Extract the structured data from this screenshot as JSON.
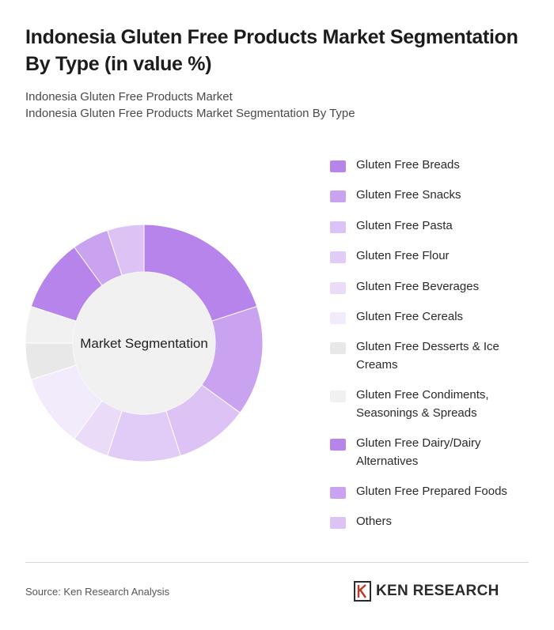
{
  "header": {
    "title": "Indonesia Gluten Free Products Market Segmentation By Type (in value %)",
    "subtitle_1": "Indonesia Gluten Free Products Market",
    "subtitle_2": "Indonesia Gluten Free Products Market Segmentation By Type"
  },
  "chart_data": {
    "type": "pie",
    "center_label": "Market Segmentation",
    "categories": [
      "Gluten Free Breads",
      "Gluten Free Snacks",
      "Gluten Free Pasta",
      "Gluten Free Flour",
      "Gluten Free Beverages",
      "Gluten Free Cereals",
      "Gluten Free Desserts & Ice Creams",
      "Gluten Free Condiments, Seasonings & Spreads",
      "Gluten Free Dairy/Dairy Alternatives",
      "Gluten Free Prepared Foods",
      "Others"
    ],
    "values": [
      20,
      15,
      10,
      10,
      5,
      10,
      5,
      5,
      10,
      5,
      5
    ],
    "colors": [
      "#b684ea",
      "#c9a2f0",
      "#dcc2f5",
      "#e0ccf6",
      "#eadcf9",
      "#f2ebfc",
      "#e8e8e8",
      "#f1f1f1",
      "#b684ea",
      "#c9a2f0",
      "#dcc2f5"
    ],
    "legend_position": "right"
  },
  "footer": {
    "source": "Source: Ken Research Analysis",
    "logo_text": "KEN RESEARCH"
  }
}
